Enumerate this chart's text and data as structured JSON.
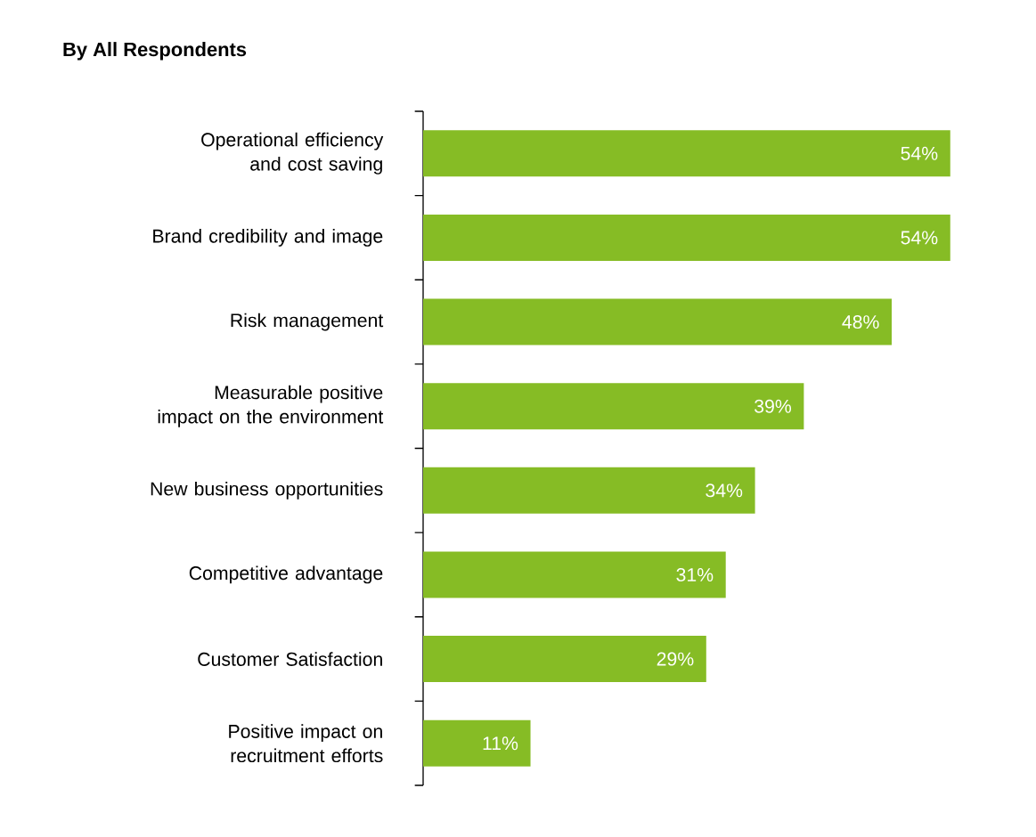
{
  "chart_data": {
    "type": "bar",
    "orientation": "horizontal",
    "title": "By All Respondents",
    "categories": [
      "Operational efficiency and cost saving",
      "Brand credibility and image",
      "Risk management",
      "Measurable positive impact on the environment",
      "New business opportunities",
      "Competitive advantage",
      "Customer Satisfaction",
      "Positive impact on recruitment efforts"
    ],
    "values": [
      54,
      54,
      48,
      39,
      34,
      31,
      29,
      11
    ],
    "value_labels": [
      "54%",
      "54%",
      "48%",
      "39%",
      "34%",
      "31%",
      "29%",
      "11%"
    ],
    "color": "#86bc25"
  }
}
